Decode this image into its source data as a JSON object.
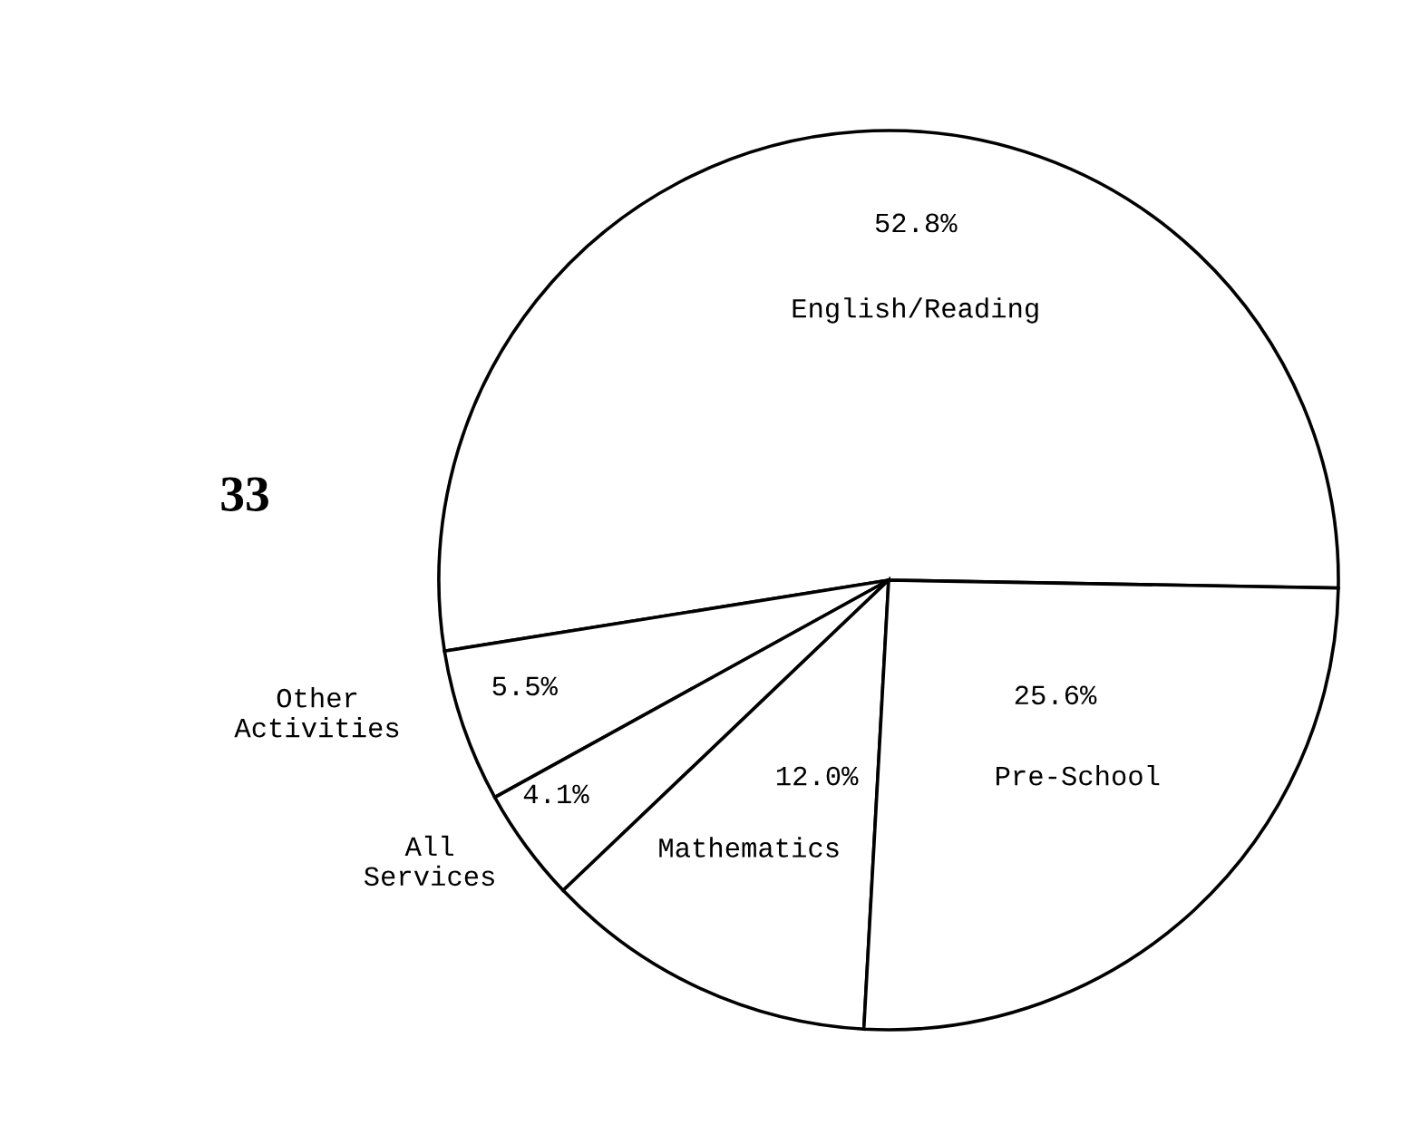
{
  "chart_data": {
    "type": "pie",
    "categories": [
      "English/Reading",
      "Other Activities",
      "All Services",
      "Mathematics",
      "Pre-School"
    ],
    "values": [
      52.8,
      5.5,
      4.1,
      12.0,
      25.6
    ],
    "colors": [
      "#ffffff",
      "#ffffff",
      "#ffffff",
      "#ffffff",
      "#ffffff"
    ],
    "value_labels": [
      "52.8%",
      "5.5%",
      "4.1%",
      "12.0%",
      "25.6%"
    ],
    "annotations": [
      "33"
    ]
  }
}
